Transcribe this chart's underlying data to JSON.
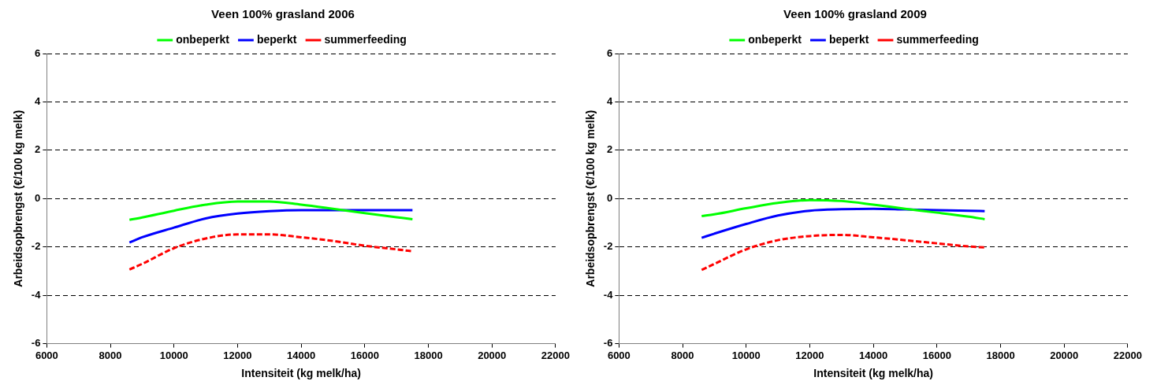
{
  "chart_data": [
    {
      "type": "line",
      "title": "Veen 100% grasland 2006",
      "xlabel": "Intensiteit (kg melk/ha)",
      "ylabel": "Arbeidsopbrengst (€/100 kg melk)",
      "xlim": [
        6000,
        22000
      ],
      "xticks": [
        6000,
        8000,
        10000,
        12000,
        14000,
        16000,
        18000,
        20000,
        22000
      ],
      "ylim": [
        -6,
        6
      ],
      "yticks": [
        -6,
        -4,
        -2,
        0,
        2,
        4,
        6
      ],
      "grid": "y",
      "legend": "top",
      "marker": "none",
      "x": [
        8600,
        9000,
        10000,
        11000,
        12000,
        13000,
        14000,
        15000,
        16000,
        17000,
        17500
      ],
      "series": [
        {
          "name": "onbeperkt",
          "color": "#00ff00",
          "line_style": "solid",
          "values": [
            -0.88,
            -0.78,
            -0.5,
            -0.25,
            -0.12,
            -0.12,
            -0.25,
            -0.42,
            -0.6,
            -0.77,
            -0.85
          ]
        },
        {
          "name": "beperkt",
          "color": "#0000ff",
          "line_style": "solid",
          "values": [
            -1.82,
            -1.6,
            -1.2,
            -0.82,
            -0.62,
            -0.52,
            -0.48,
            -0.48,
            -0.48,
            -0.48,
            -0.48
          ]
        },
        {
          "name": "summerfeeding",
          "color": "#ff0000",
          "line_style": "dashed",
          "values": [
            -2.93,
            -2.7,
            -2.05,
            -1.65,
            -1.48,
            -1.48,
            -1.6,
            -1.75,
            -1.95,
            -2.1,
            -2.18
          ]
        }
      ]
    },
    {
      "type": "line",
      "title": "Veen 100% grasland 2009",
      "xlabel": "Intensiteit (kg melk/ha)",
      "ylabel": "Arbeidsopbrengst (€/100 kg melk)",
      "xlim": [
        6000,
        22000
      ],
      "xticks": [
        6000,
        8000,
        10000,
        12000,
        14000,
        16000,
        18000,
        20000,
        22000
      ],
      "ylim": [
        -6,
        6
      ],
      "yticks": [
        -6,
        -4,
        -2,
        0,
        2,
        4,
        6
      ],
      "grid": "y",
      "legend": "top",
      "marker": "none",
      "x": [
        8600,
        9000,
        10000,
        11000,
        12000,
        13000,
        14000,
        15000,
        16000,
        17000,
        17500
      ],
      "series": [
        {
          "name": "onbeperkt",
          "color": "#00ff00",
          "line_style": "solid",
          "values": [
            -0.72,
            -0.65,
            -0.4,
            -0.18,
            -0.06,
            -0.1,
            -0.25,
            -0.42,
            -0.58,
            -0.75,
            -0.85
          ]
        },
        {
          "name": "beperkt",
          "color": "#0000ff",
          "line_style": "solid",
          "values": [
            -1.62,
            -1.45,
            -1.05,
            -0.7,
            -0.5,
            -0.44,
            -0.42,
            -0.45,
            -0.48,
            -0.5,
            -0.52
          ]
        },
        {
          "name": "summerfeeding",
          "color": "#ff0000",
          "line_style": "dashed",
          "values": [
            -2.95,
            -2.7,
            -2.1,
            -1.72,
            -1.55,
            -1.5,
            -1.6,
            -1.72,
            -1.85,
            -1.98,
            -2.02
          ]
        }
      ]
    }
  ]
}
